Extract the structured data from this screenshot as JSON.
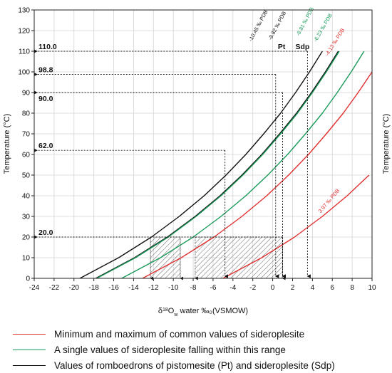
{
  "chart_data": {
    "type": "line",
    "xlabel": "δ18Ow water ‰ (VSMOW)",
    "ylabel_left": "Temperature (°C)",
    "ylabel_right": "Temperature (°C)",
    "xlim": [
      -24,
      10
    ],
    "ylim": [
      0,
      130
    ],
    "x_ticks": [
      -24,
      -22,
      -20,
      -18,
      -16,
      -14,
      -12,
      -10,
      -8,
      -6,
      -4,
      -2,
      0,
      2,
      4,
      6,
      8,
      10
    ],
    "y_ticks": [
      0,
      10,
      20,
      30,
      40,
      50,
      60,
      70,
      80,
      90,
      100,
      110,
      120,
      130
    ],
    "grid": true,
    "series": [
      {
        "name": "-10.45 ‰ PDB",
        "group": "black",
        "color": "#111111",
        "x": [
          -19.4,
          -15.5,
          -12.2,
          -9.4,
          -6.9,
          -4.7,
          -2.7,
          -0.9,
          0.8,
          2.3,
          3.7,
          5.0
        ],
        "y": [
          0,
          10,
          20,
          30,
          40,
          50,
          60,
          70,
          80,
          90,
          100,
          110
        ]
      },
      {
        "name": "-8.82 ‰ PDB",
        "group": "black",
        "color": "#111111",
        "x": [
          -17.8,
          -13.9,
          -10.6,
          -7.8,
          -5.3,
          -3.1,
          -1.1,
          0.7,
          2.4,
          3.9,
          5.3,
          6.6
        ],
        "y": [
          0,
          10,
          20,
          30,
          40,
          50,
          60,
          70,
          80,
          90,
          100,
          110
        ]
      },
      {
        "name": "-8.81 ‰ PDB",
        "group": "green",
        "color": "#1a9a5a",
        "x": [
          -17.7,
          -13.8,
          -10.5,
          -7.7,
          -5.2,
          -3.0,
          -1.0,
          0.8,
          2.5,
          4.0,
          5.4,
          6.7
        ],
        "y": [
          0,
          10,
          20,
          30,
          40,
          50,
          60,
          70,
          80,
          90,
          100,
          110
        ]
      },
      {
        "name": "-6.23 ‰ PDB",
        "group": "green",
        "color": "#1a9a5a",
        "x": [
          -15.2,
          -11.3,
          -8.0,
          -5.2,
          -2.7,
          -0.5,
          1.5,
          3.3,
          5.0,
          6.5,
          7.9,
          9.2
        ],
        "y": [
          0,
          10,
          20,
          30,
          40,
          50,
          60,
          70,
          80,
          90,
          100,
          110
        ]
      },
      {
        "name": "-4.13 ‰ PDB",
        "group": "red",
        "color": "#e03030",
        "x": [
          -13.1,
          -9.2,
          -5.9,
          -3.1,
          -0.6,
          1.6,
          3.6,
          5.4,
          7.1,
          8.6,
          10.0
        ],
        "y": [
          0,
          10,
          20,
          30,
          40,
          50,
          60,
          70,
          80,
          90,
          100
        ]
      },
      {
        "name": "3.97 ‰ PDB",
        "group": "red",
        "color": "#e03030",
        "x": [
          -5.0,
          -1.1,
          2.2,
          5.0,
          7.5,
          9.7
        ],
        "y": [
          0,
          10,
          20,
          30,
          40,
          50
        ]
      }
    ],
    "callouts": [
      {
        "label": "110.0",
        "y": 110,
        "x": 3.5
      },
      {
        "label": "98.8",
        "y": 98.8,
        "x": 0.3
      },
      {
        "label": "90.0",
        "y": 90,
        "x": 1.0
      },
      {
        "label": "62.0",
        "y": 62,
        "x": -4.8
      },
      {
        "label": "20.0",
        "y": 20,
        "x": 1.0
      }
    ],
    "point_labels": [
      {
        "label": "Pt",
        "x": 0.9,
        "y": 111
      },
      {
        "label": "Sdp",
        "x": 3.0,
        "y": 111
      }
    ],
    "hatched_ranges": [
      {
        "x0": -12.3,
        "x1": -9.3,
        "y0": 0,
        "y1": 20
      },
      {
        "x0": -7.8,
        "x1": 1.0,
        "y0": 0,
        "y1": 20
      }
    ],
    "legend_position": "bottom",
    "legend": [
      {
        "label": "Minimum and maximum of common values of sideroplesite",
        "color": "#e03030"
      },
      {
        "label": "A single values of sideroplesite falling within this range",
        "color": "#1a9a5a"
      },
      {
        "label": "Values of romboedrons of pistomesite (Pt) and sideroplesite (Sdp)",
        "color": "#111111"
      }
    ]
  }
}
